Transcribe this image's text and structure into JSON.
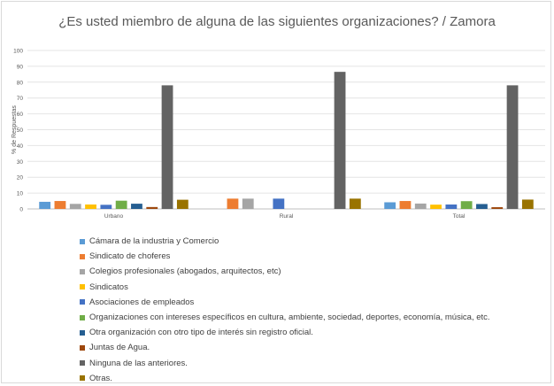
{
  "chart_data": {
    "type": "bar",
    "title": "¿Es usted miembro de alguna de las siguientes organizaciones? / Zamora",
    "ylabel": "% de Respuestas",
    "ylim": [
      0,
      100
    ],
    "y_ticks": [
      0,
      10,
      20,
      30,
      40,
      50,
      60,
      70,
      80,
      90,
      100
    ],
    "grid": true,
    "legend_position": "bottom",
    "categories": [
      "Urbano",
      "Rural",
      "Total"
    ],
    "series": [
      {
        "name": "Cámara de la industria y Comercio",
        "color": "#5B9BD5",
        "values": [
          4.5,
          0,
          4.2
        ]
      },
      {
        "name": "Sindicato de choferes",
        "color": "#ED7D31",
        "values": [
          5.0,
          6.5,
          5.0
        ]
      },
      {
        "name": "Colegios profesionales (abogados, arquitectos, etc)",
        "color": "#A5A5A5",
        "values": [
          3.2,
          6.5,
          3.4
        ]
      },
      {
        "name": "Sindicatos",
        "color": "#FFC000",
        "values": [
          2.8,
          0,
          2.7
        ]
      },
      {
        "name": "Asociaciones de empleados",
        "color": "#4472C4",
        "values": [
          2.6,
          6.5,
          2.8
        ]
      },
      {
        "name": "Organizaciones con intereses específicos en cultura, ambiente, sociedad, deportes, economía, música, etc.",
        "color": "#70AD47",
        "values": [
          5.2,
          0,
          4.9
        ]
      },
      {
        "name": "Otra organización con otro tipo de interés sin registro oficial.",
        "color": "#255E91",
        "values": [
          3.3,
          0,
          3.1
        ]
      },
      {
        "name": "Juntas de Agua.",
        "color": "#9E480E",
        "values": [
          1.2,
          0,
          1.1
        ]
      },
      {
        "name": "Ninguna de las anteriores.",
        "color": "#636363",
        "values": [
          78,
          86.5,
          78
        ]
      },
      {
        "name": "Otras.",
        "color": "#997300",
        "values": [
          5.8,
          6.5,
          5.9
        ]
      }
    ]
  }
}
